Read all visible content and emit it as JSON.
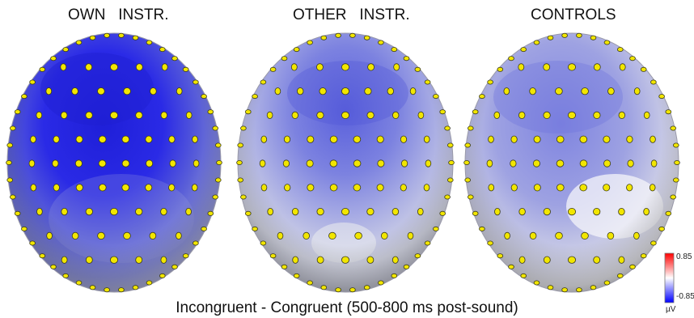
{
  "panels": [
    {
      "title": "OWN   INSTR.",
      "color_scheme": "strong-negative"
    },
    {
      "title": "OTHER   INSTR.",
      "color_scheme": "moderate-negative"
    },
    {
      "title": "CONTROLS",
      "color_scheme": "weak-negative"
    }
  ],
  "caption": "Incongruent - Congruent (500-800 ms post-sound)",
  "colorbar": {
    "max_label": "0.85",
    "min_label": "-0.85",
    "unit": "µV",
    "colors": [
      "#ff0000",
      "#ffffff",
      "#0000ff"
    ]
  },
  "electrode_color": "#f2e600"
}
